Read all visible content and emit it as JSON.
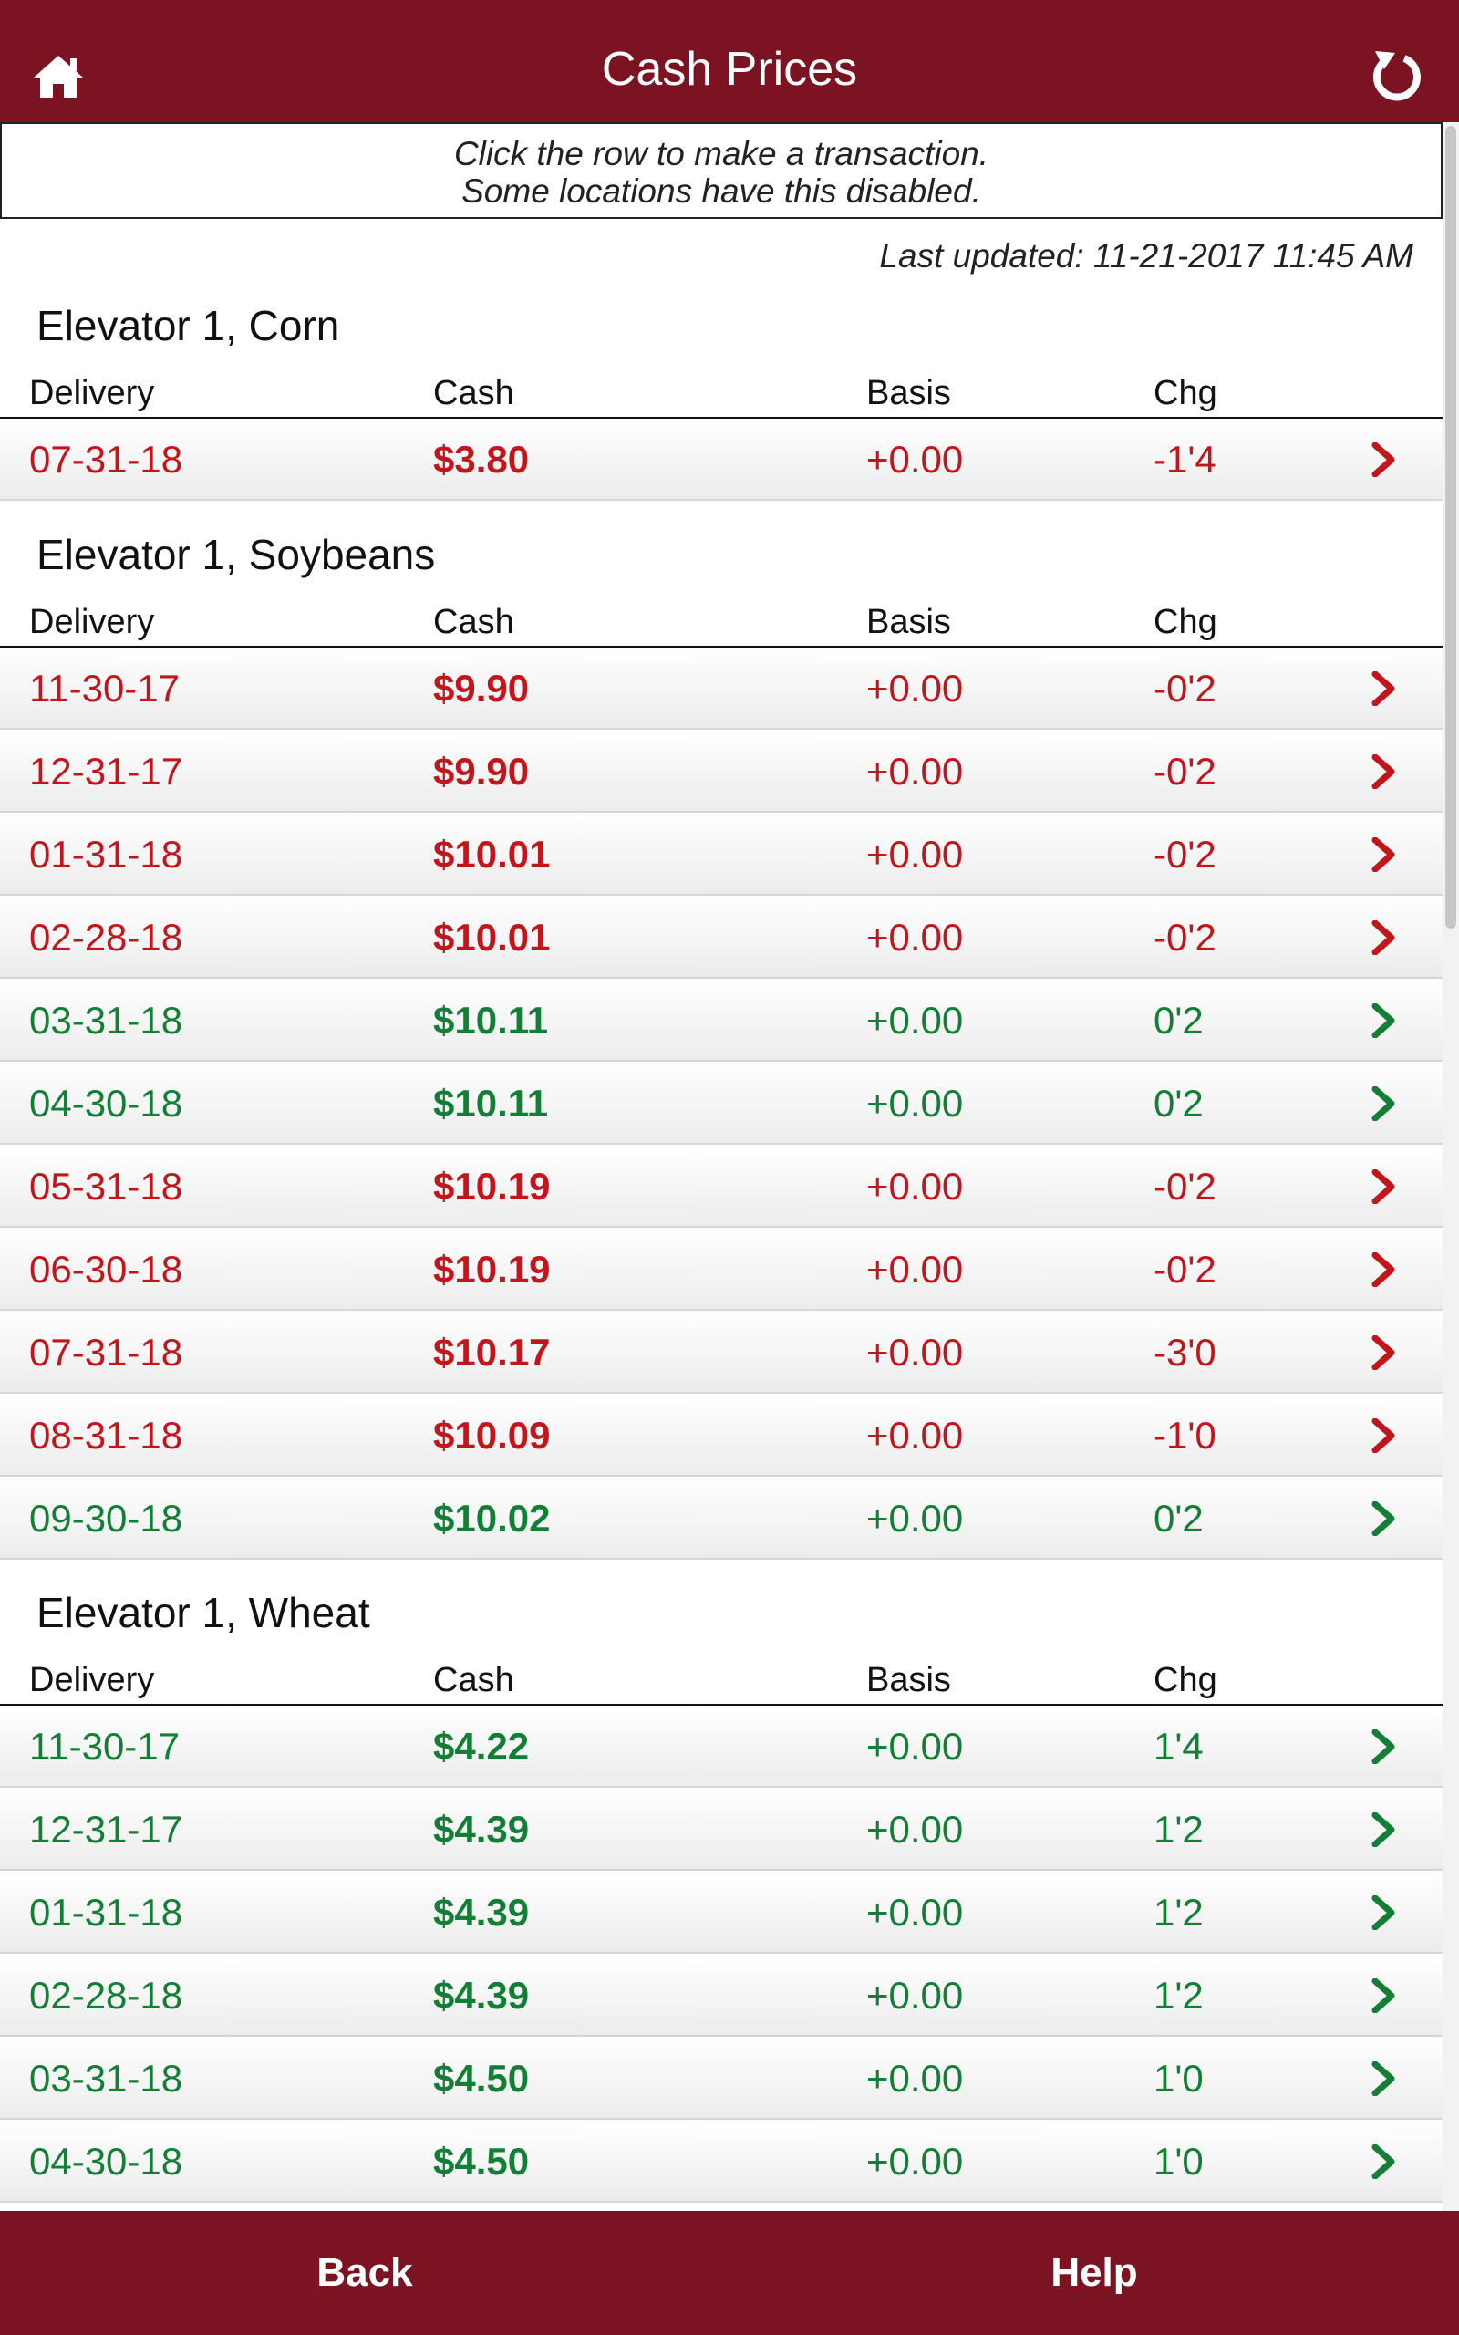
{
  "header": {
    "title": "Cash Prices",
    "home_icon": "home-icon",
    "refresh_icon": "refresh-icon"
  },
  "notice": {
    "line1": "Click the row to make a transaction.",
    "line2": "Some locations have this disabled."
  },
  "last_updated": "Last updated: 11-21-2017 11:45 AM",
  "columns": {
    "delivery": "Delivery",
    "cash": "Cash",
    "basis": "Basis",
    "chg": "Chg"
  },
  "colors": {
    "brand": "#7b1322",
    "up": "#137f36",
    "down": "#c3161c"
  },
  "sections": [
    {
      "title": "Elevator 1, Corn",
      "rows": [
        {
          "delivery": "07-31-18",
          "cash": "$3.80",
          "basis": "+0.00",
          "chg": "-1'4",
          "trend": "down"
        }
      ]
    },
    {
      "title": "Elevator 1, Soybeans",
      "rows": [
        {
          "delivery": "11-30-17",
          "cash": "$9.90",
          "basis": "+0.00",
          "chg": "-0'2",
          "trend": "down"
        },
        {
          "delivery": "12-31-17",
          "cash": "$9.90",
          "basis": "+0.00",
          "chg": "-0'2",
          "trend": "down"
        },
        {
          "delivery": "01-31-18",
          "cash": "$10.01",
          "basis": "+0.00",
          "chg": "-0'2",
          "trend": "down"
        },
        {
          "delivery": "02-28-18",
          "cash": "$10.01",
          "basis": "+0.00",
          "chg": "-0'2",
          "trend": "down"
        },
        {
          "delivery": "03-31-18",
          "cash": "$10.11",
          "basis": "+0.00",
          "chg": "0'2",
          "trend": "up"
        },
        {
          "delivery": "04-30-18",
          "cash": "$10.11",
          "basis": "+0.00",
          "chg": "0'2",
          "trend": "up"
        },
        {
          "delivery": "05-31-18",
          "cash": "$10.19",
          "basis": "+0.00",
          "chg": "-0'2",
          "trend": "down"
        },
        {
          "delivery": "06-30-18",
          "cash": "$10.19",
          "basis": "+0.00",
          "chg": "-0'2",
          "trend": "down"
        },
        {
          "delivery": "07-31-18",
          "cash": "$10.17",
          "basis": "+0.00",
          "chg": "-3'0",
          "trend": "down"
        },
        {
          "delivery": "08-31-18",
          "cash": "$10.09",
          "basis": "+0.00",
          "chg": "-1'0",
          "trend": "down"
        },
        {
          "delivery": "09-30-18",
          "cash": "$10.02",
          "basis": "+0.00",
          "chg": "0'2",
          "trend": "up"
        }
      ]
    },
    {
      "title": "Elevator 1, Wheat",
      "rows": [
        {
          "delivery": "11-30-17",
          "cash": "$4.22",
          "basis": "+0.00",
          "chg": "1'4",
          "trend": "up"
        },
        {
          "delivery": "12-31-17",
          "cash": "$4.39",
          "basis": "+0.00",
          "chg": "1'2",
          "trend": "up"
        },
        {
          "delivery": "01-31-18",
          "cash": "$4.39",
          "basis": "+0.00",
          "chg": "1'2",
          "trend": "up"
        },
        {
          "delivery": "02-28-18",
          "cash": "$4.39",
          "basis": "+0.00",
          "chg": "1'2",
          "trend": "up"
        },
        {
          "delivery": "03-31-18",
          "cash": "$4.50",
          "basis": "+0.00",
          "chg": "1'0",
          "trend": "up"
        },
        {
          "delivery": "04-30-18",
          "cash": "$4.50",
          "basis": "+0.00",
          "chg": "1'0",
          "trend": "up"
        }
      ]
    }
  ],
  "footer": {
    "back_label": "Back",
    "help_label": "Help"
  }
}
